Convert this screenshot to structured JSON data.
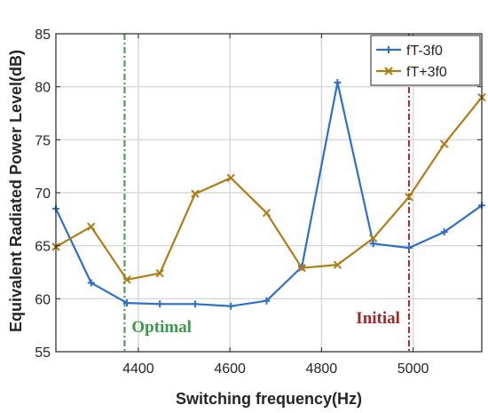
{
  "chart_data": {
    "type": "line",
    "xlabel": "Switching frequency(Hz)",
    "ylabel": "Equivalent Radiated Power Level(dB)",
    "xlim": [
      4220,
      5150
    ],
    "ylim": [
      55,
      85
    ],
    "xticks": [
      4400,
      4600,
      4800,
      5000
    ],
    "yticks": [
      55,
      60,
      65,
      70,
      75,
      80,
      85
    ],
    "grid": true,
    "legend_position": "top-right",
    "series": [
      {
        "name": "fT-3f0",
        "color": "#2f6fcc",
        "marker": "plus",
        "x": [
          4220,
          4297,
          4375,
          4447,
          4524,
          4602,
          4680,
          4757,
          4835,
          4913,
          4991,
          5068,
          5150
        ],
        "y": [
          68.5,
          61.5,
          59.6,
          59.5,
          59.5,
          59.3,
          59.8,
          63.0,
          80.4,
          65.2,
          64.8,
          66.3,
          68.8
        ]
      },
      {
        "name": "fT+3f0",
        "color": "#b07d14",
        "marker": "x",
        "x": [
          4220,
          4297,
          4375,
          4447,
          4524,
          4602,
          4680,
          4757,
          4835,
          4913,
          4991,
          5068,
          5150
        ],
        "y": [
          64.9,
          66.8,
          61.8,
          62.4,
          69.9,
          71.4,
          68.1,
          62.9,
          63.2,
          65.7,
          69.6,
          74.6,
          79.0
        ]
      }
    ],
    "annotations": [
      {
        "text": "Optimal",
        "x": 4370,
        "color": "#3a9a4a",
        "line_color": "#3a9a4a"
      },
      {
        "text": "Initial",
        "x": 4991,
        "color": "#a0282a",
        "line_color": "#a0282a"
      }
    ]
  }
}
